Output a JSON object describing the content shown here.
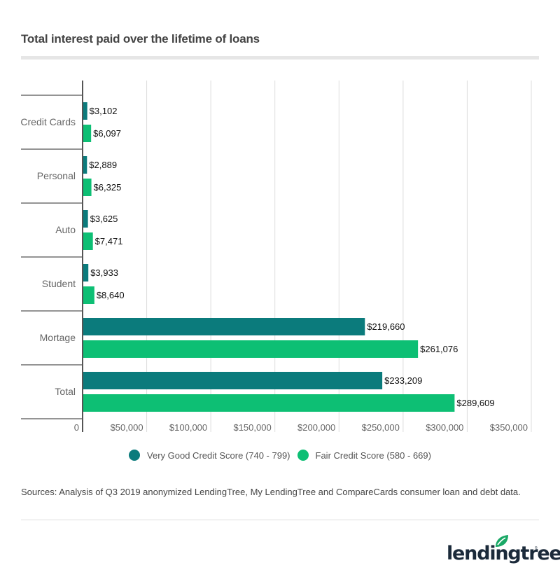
{
  "title": "Total interest paid over the lifetime of loans",
  "chart_data": {
    "type": "bar",
    "orientation": "horizontal",
    "title": "Total interest paid over the lifetime of loans",
    "categories": [
      "Credit Cards",
      "Personal",
      "Auto",
      "Student",
      "Mortage",
      "Total"
    ],
    "series": [
      {
        "name": "Very Good Credit Score (740 - 799)",
        "color": "#0b7b7c",
        "values": [
          3102,
          2889,
          3625,
          3933,
          219660,
          233209
        ],
        "labels": [
          "$3,102",
          "$2,889",
          "$3,625",
          "$3,933",
          "$219,660",
          "$233,209"
        ]
      },
      {
        "name": "Fair Credit Score (580 - 669)",
        "color": "#0dbf74",
        "values": [
          6097,
          6325,
          7471,
          8640,
          261076,
          289609
        ],
        "labels": [
          "$6,097",
          "$6,325",
          "$7,471",
          "$8,640",
          "$261,076",
          "$289,609"
        ]
      }
    ],
    "x_ticks": [
      0,
      50000,
      100000,
      150000,
      200000,
      250000,
      300000,
      350000
    ],
    "x_tick_labels": [
      "0",
      "$50,000",
      "$100,000",
      "$150,000",
      "$200,000",
      "$250,000",
      "$300,000",
      "$350,000"
    ],
    "xlim": [
      0,
      350000
    ],
    "xlabel": "",
    "ylabel": "",
    "grid": true,
    "legend_position": "bottom-center"
  },
  "legend": [
    {
      "label": "Very Good Credit Score (740 - 799)",
      "color": "#0b7b7c"
    },
    {
      "label": "Fair Credit Score (580 - 669)",
      "color": "#0dbf74"
    }
  ],
  "source": "Sources: Analysis of Q3 2019 anonymized LendingTree, My LendingTree and CompareCards consumer loan and debt data.",
  "logo": {
    "text": "lendingtree",
    "reg": "®"
  }
}
